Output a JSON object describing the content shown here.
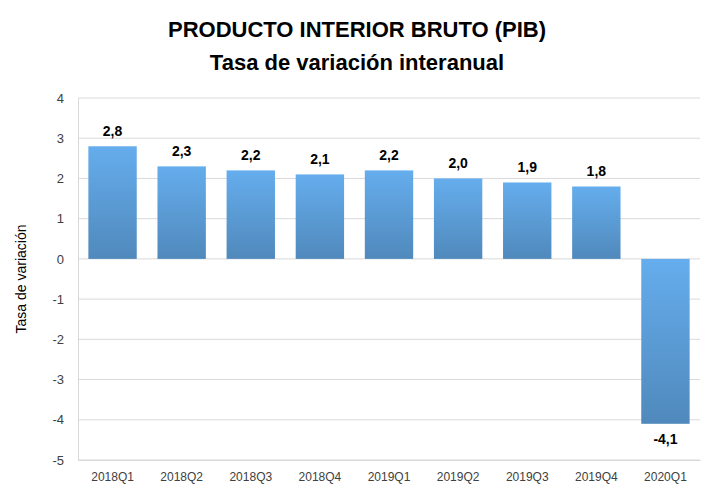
{
  "chart_data": {
    "type": "bar",
    "title": "PRODUCTO INTERIOR BRUTO (PIB)",
    "subtitle": "Tasa de variación interanual",
    "y_label": "Tasa de variación",
    "categories": [
      "2018Q1",
      "2018Q2",
      "2018Q3",
      "2018Q4",
      "2019Q1",
      "2019Q2",
      "2019Q3",
      "2019Q4",
      "2020Q1"
    ],
    "values": [
      2.8,
      2.3,
      2.2,
      2.1,
      2.2,
      2.0,
      1.9,
      1.8,
      -4.1
    ],
    "value_labels": [
      "2,8",
      "2,3",
      "2,2",
      "2,1",
      "2,2",
      "2,0",
      "1,9",
      "1,8",
      "-4,1"
    ],
    "color": "#5b9bd5",
    "ylim": [
      -5,
      4
    ],
    "yticks": [
      -5,
      -4,
      -3,
      -2,
      -1,
      0,
      1,
      2,
      3,
      4
    ],
    "grid": true,
    "data_labels": true
  }
}
